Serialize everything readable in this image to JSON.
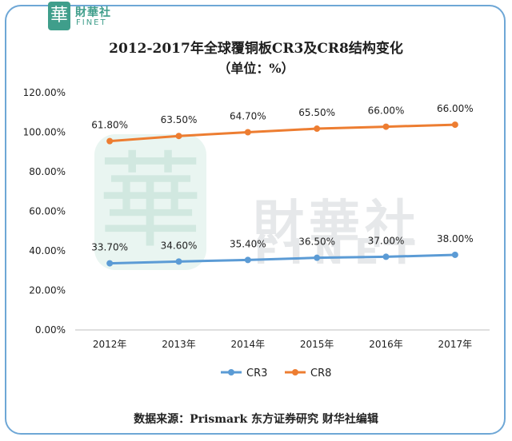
{
  "brand": {
    "seal_char": "華",
    "name_cn": "財華社",
    "name_en": "FINET",
    "accent_color": "#3f9e8b",
    "border_color": "#6ea7d6"
  },
  "title_line1": "2012-2017年全球覆铜板CR3及CR8结构变化",
  "title_line2": "（单位：%）",
  "chart_data": {
    "type": "line",
    "categories": [
      "2012年",
      "2013年",
      "2014年",
      "2015年",
      "2016年",
      "2017年"
    ],
    "yticks": [
      "0.00%",
      "20.00%",
      "40.00%",
      "60.00%",
      "80.00%",
      "100.00%",
      "120.00%"
    ],
    "ylim": [
      0,
      120
    ],
    "grid": false,
    "legend_position": "bottom",
    "series": [
      {
        "name": "CR3",
        "color": "#5b9bd5",
        "labels": [
          "33.70%",
          "34.60%",
          "35.40%",
          "36.50%",
          "37.00%",
          "38.00%"
        ],
        "values": [
          33.7,
          34.6,
          35.4,
          36.5,
          37.0,
          38.0
        ]
      },
      {
        "name": "CR8",
        "color": "#ed7d31",
        "labels": [
          "61.80%",
          "63.50%",
          "64.70%",
          "65.50%",
          "66.00%",
          "66.00%"
        ],
        "values": [
          95.5,
          98.1,
          100.0,
          101.8,
          102.8,
          103.8
        ]
      }
    ]
  },
  "source_text": "数据来源：Prismark 东方证券研究   财华社编辑"
}
